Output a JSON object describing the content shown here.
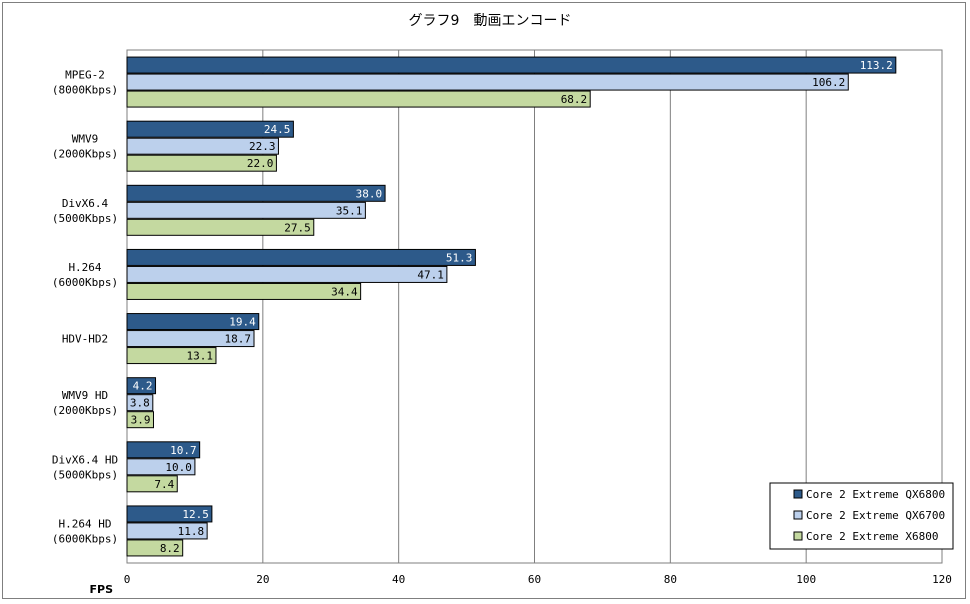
{
  "chart_data": {
    "type": "bar",
    "orientation": "horizontal",
    "title": "グラフ9　動画エンコード",
    "xlabel": "FPS",
    "xlim": [
      0,
      120
    ],
    "xticks": [
      0,
      20,
      40,
      60,
      80,
      100,
      120
    ],
    "grid": true,
    "legend_position": "bottom-right",
    "categories": [
      [
        "MPEG-2",
        "(8000Kbps)"
      ],
      [
        "WMV9",
        "(2000Kbps)"
      ],
      [
        "DivX6.4",
        "(5000Kbps)"
      ],
      [
        "H.264",
        "(6000Kbps)"
      ],
      [
        "HDV-HD2"
      ],
      [
        "WMV9 HD",
        "(2000Kbps)"
      ],
      [
        "DivX6.4 HD",
        "(5000Kbps)"
      ],
      [
        "H.264 HD",
        "(6000Kbps)"
      ]
    ],
    "series": [
      {
        "name": "Core 2 Extreme QX6800",
        "color": "#2d5a8a",
        "label_color": "#ffffff",
        "values": [
          113.2,
          24.5,
          38.0,
          51.3,
          19.4,
          4.2,
          10.7,
          12.5
        ]
      },
      {
        "name": "Core 2 Extreme QX6700",
        "color": "#bcd0ec",
        "label_color": "#000000",
        "values": [
          106.2,
          22.3,
          35.1,
          47.1,
          18.7,
          3.8,
          10.0,
          11.8
        ]
      },
      {
        "name": "Core 2 Extreme X6800",
        "color": "#c4d9a0",
        "label_color": "#000000",
        "values": [
          68.2,
          22.0,
          27.5,
          34.4,
          13.1,
          3.9,
          7.4,
          8.2
        ]
      }
    ]
  }
}
